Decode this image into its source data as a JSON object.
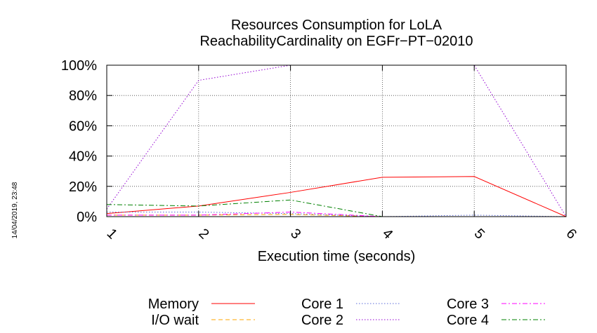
{
  "chart_data": {
    "type": "line",
    "title": [
      "Resources Consumption for LoLA",
      "ReachabilityCardinality on EGFr−PT−02010"
    ],
    "xlabel": "Execution time (seconds)",
    "ylabel": "",
    "x": [
      1,
      2,
      3,
      4,
      5,
      6
    ],
    "xlim": [
      1,
      6
    ],
    "ylim": [
      0,
      100
    ],
    "x_ticks": [
      "1",
      "2",
      "3",
      "4",
      "5",
      "6"
    ],
    "y_ticks": [
      "0%",
      "20%",
      "40%",
      "60%",
      "80%",
      "100%"
    ],
    "grid": true,
    "legend_position": "bottom",
    "timestamp": "14/04/2019, 23:48",
    "series": [
      {
        "name": "Memory",
        "color": "#ff0000",
        "dash": "solid",
        "values": [
          2,
          7,
          16,
          26,
          26.5,
          0
        ]
      },
      {
        "name": "I/O wait",
        "color": "#ffa500",
        "dash": "dashed",
        "values": [
          1,
          1,
          1.5,
          0,
          0,
          0
        ]
      },
      {
        "name": "Core 1",
        "color": "#5b6bd9",
        "dash": "dotted",
        "values": [
          3,
          3,
          2,
          0,
          1,
          0
        ]
      },
      {
        "name": "Core 2",
        "color": "#9400d3",
        "dash": "dotted",
        "values": [
          5,
          90,
          100,
          100,
          100,
          0
        ]
      },
      {
        "name": "Core 3",
        "color": "#ff00ff",
        "dash": "dashdot",
        "values": [
          1,
          1,
          3,
          0,
          0,
          0
        ]
      },
      {
        "name": "Core 4",
        "color": "#008000",
        "dash": "dashdot",
        "values": [
          8,
          7,
          11,
          0,
          0,
          0
        ]
      }
    ]
  }
}
